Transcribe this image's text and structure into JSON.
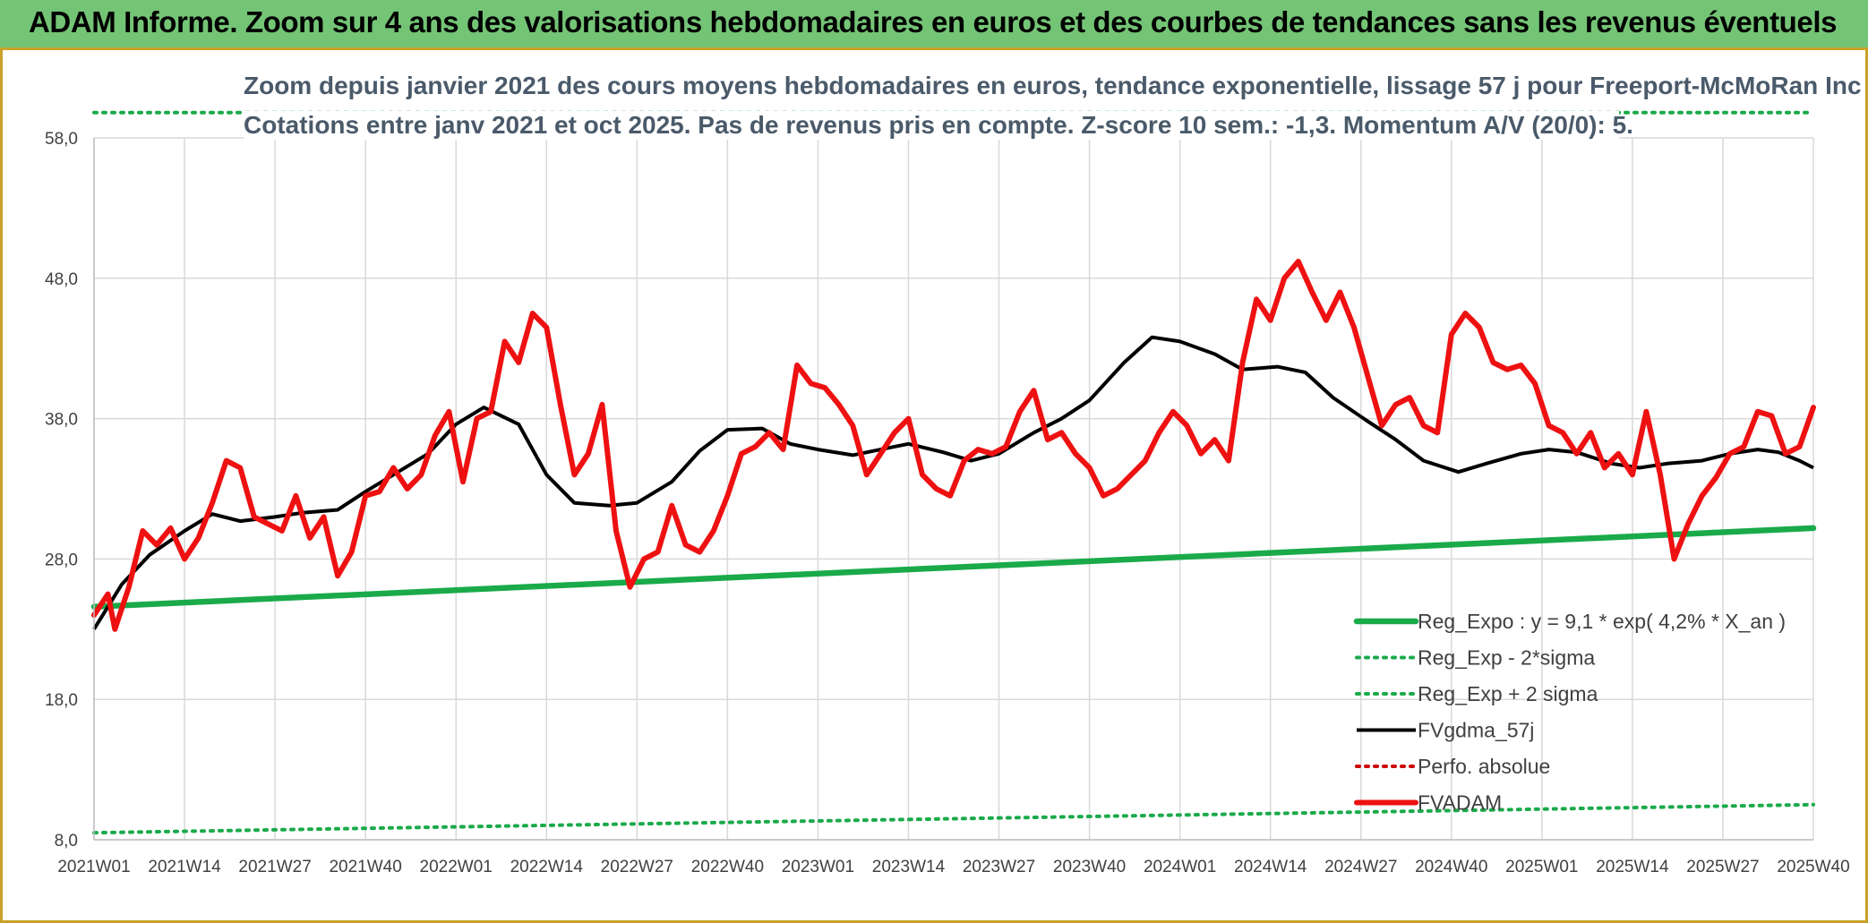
{
  "header": {
    "title": "ADAM Informe. Zoom sur 4 ans des valorisations hebdomadaires en euros et des courbes de tendances sans les revenus éventuels"
  },
  "colors": {
    "header_bg": "#74c476",
    "accent_border": "#c9a227",
    "reg_expo": "#1aaa4a",
    "fvgdma": "#000000",
    "fvadam": "#ee1111",
    "perfo": "#cc0000"
  },
  "chart_data": {
    "type": "line",
    "title": "Zoom depuis janvier 2021 des cours moyens hebdomadaires en euros, tendance exponentielle, lissage 57 j pour Freeport-McMoRan Inc",
    "subtitle": "Cotations entre janv 2021 et oct 2025. Pas de revenus pris en compte. Z-score 10 sem.: -1,3. Momentum A/V (20/0): 5.",
    "xlabel": "",
    "ylabel": "",
    "ylim": [
      8,
      58
    ],
    "y_ticks": [
      "8,0",
      "18,0",
      "28,0",
      "38,0",
      "48,0",
      "58,0"
    ],
    "y_tick_values": [
      8,
      18,
      28,
      38,
      48,
      58
    ],
    "x_ticks": [
      "2021W01",
      "2021W14",
      "2021W27",
      "2021W40",
      "2022W01",
      "2022W14",
      "2022W27",
      "2022W40",
      "2023W01",
      "2023W14",
      "2023W27",
      "2023W40",
      "2024W01",
      "2024W14",
      "2024W27",
      "2024W40",
      "2025W01",
      "2025W14",
      "2025W27",
      "2025W40"
    ],
    "x_range": [
      0,
      247
    ],
    "grid": true,
    "legend_position": "bottom-right",
    "legend": [
      "Reg_Expo : y = 9,1 * exp( 4,2% *  X_an )",
      "Reg_Exp - 2*sigma",
      "Reg_Exp + 2 sigma",
      "FVgdma_57j",
      "Perfo. absolue",
      "FVADAM"
    ],
    "series": [
      {
        "name": "Reg_Expo : y = 9,1 * exp( 4,2% *  X_an )",
        "style": "solid-thick",
        "color": "#1aaa4a",
        "x": [
          0,
          247
        ],
        "y": [
          24.6,
          30.2
        ]
      },
      {
        "name": "Reg_Exp - 2*sigma",
        "style": "dotted",
        "color": "#1aaa4a",
        "x": [
          0,
          247
        ],
        "y": [
          8.5,
          10.5
        ]
      },
      {
        "name": "Reg_Exp + 2 sigma",
        "style": "dotted",
        "color": "#1aaa4a",
        "x": [
          0,
          247
        ],
        "y": [
          59.8,
          59.8
        ]
      },
      {
        "name": "FVgdma_57j",
        "style": "solid",
        "color": "#000000",
        "x": [
          0,
          4,
          8,
          13,
          17,
          21,
          26,
          30,
          35,
          39,
          43,
          48,
          52,
          56,
          61,
          65,
          69,
          74,
          78,
          83,
          87,
          91,
          96,
          100,
          104,
          109,
          113,
          117,
          122,
          126,
          130,
          135,
          139,
          143,
          148,
          152,
          156,
          161,
          165,
          170,
          174,
          178,
          183,
          187,
          191,
          196,
          200,
          205,
          209,
          213,
          218,
          222,
          226,
          231,
          235,
          239,
          242,
          245,
          247
        ],
        "y": [
          23,
          26.2,
          28.3,
          30,
          31.2,
          30.7,
          31,
          31.3,
          31.5,
          32.8,
          34,
          35.5,
          37.6,
          38.8,
          37.6,
          34,
          32,
          31.8,
          32,
          33.5,
          35.7,
          37.2,
          37.3,
          36.2,
          35.8,
          35.4,
          35.8,
          36.2,
          35.6,
          35,
          35.5,
          37,
          38,
          39.3,
          42,
          43.8,
          43.5,
          42.6,
          41.5,
          41.7,
          41.3,
          39.5,
          37.8,
          36.5,
          35,
          34.2,
          34.8,
          35.5,
          35.8,
          35.6,
          34.8,
          34.5,
          34.8,
          35,
          35.5,
          35.8,
          35.6,
          35,
          34.5
        ]
      },
      {
        "name": "Perfo. absolue",
        "style": "dotted",
        "color": "#cc0000",
        "x": [],
        "y": []
      },
      {
        "name": "FVADAM",
        "style": "solid-thick",
        "color": "#ee1111",
        "x": [
          0,
          2,
          3,
          5,
          7,
          9,
          11,
          13,
          15,
          17,
          19,
          21,
          23,
          25,
          27,
          29,
          31,
          33,
          35,
          37,
          39,
          41,
          43,
          45,
          47,
          49,
          51,
          53,
          55,
          57,
          59,
          61,
          63,
          65,
          67,
          69,
          71,
          73,
          75,
          77,
          79,
          81,
          83,
          85,
          87,
          89,
          91,
          93,
          95,
          97,
          99,
          101,
          103,
          105,
          107,
          109,
          111,
          113,
          115,
          117,
          119,
          121,
          123,
          125,
          127,
          129,
          131,
          133,
          135,
          137,
          139,
          141,
          143,
          145,
          147,
          149,
          151,
          153,
          155,
          157,
          159,
          161,
          163,
          165,
          167,
          169,
          171,
          173,
          175,
          177,
          179,
          181,
          183,
          185,
          187,
          189,
          191,
          193,
          195,
          197,
          199,
          201,
          203,
          205,
          207,
          209,
          211,
          213,
          215,
          217,
          219,
          221,
          223,
          225,
          227,
          229,
          231,
          233,
          235,
          237,
          239,
          241,
          243,
          245,
          247
        ],
        "y": [
          24,
          25.5,
          23,
          26,
          30,
          29,
          30.2,
          28,
          29.5,
          32,
          35,
          34.5,
          31,
          30.5,
          30,
          32.5,
          29.5,
          31,
          26.8,
          28.5,
          32.5,
          32.8,
          34.5,
          33,
          34,
          36.8,
          38.5,
          33.5,
          38,
          38.5,
          43.5,
          42,
          45.5,
          44.5,
          39,
          34,
          35.5,
          39,
          30,
          26,
          28,
          28.5,
          31.8,
          29,
          28.5,
          30,
          32.5,
          35.5,
          36,
          37,
          35.8,
          41.8,
          40.5,
          40.2,
          39,
          37.5,
          34,
          35.5,
          37,
          38,
          34,
          33,
          32.5,
          35,
          35.8,
          35.5,
          36,
          38.5,
          40,
          36.5,
          37,
          35.5,
          34.5,
          32.5,
          33,
          34,
          35,
          37,
          38.5,
          37.5,
          35.5,
          36.5,
          35,
          42,
          46.5,
          45,
          48,
          49.2,
          47,
          45,
          47,
          44.5,
          41,
          37.5,
          39,
          39.5,
          37.5,
          37,
          44,
          45.5,
          44.5,
          42,
          41.5,
          41.8,
          40.5,
          37.5,
          37,
          35.5,
          37,
          34.5,
          35.5,
          34,
          38.5,
          34,
          28,
          30.5,
          32.5,
          33.8,
          35.5,
          36,
          38.5,
          38.2,
          35.5,
          36,
          38.8
        ]
      }
    ]
  }
}
